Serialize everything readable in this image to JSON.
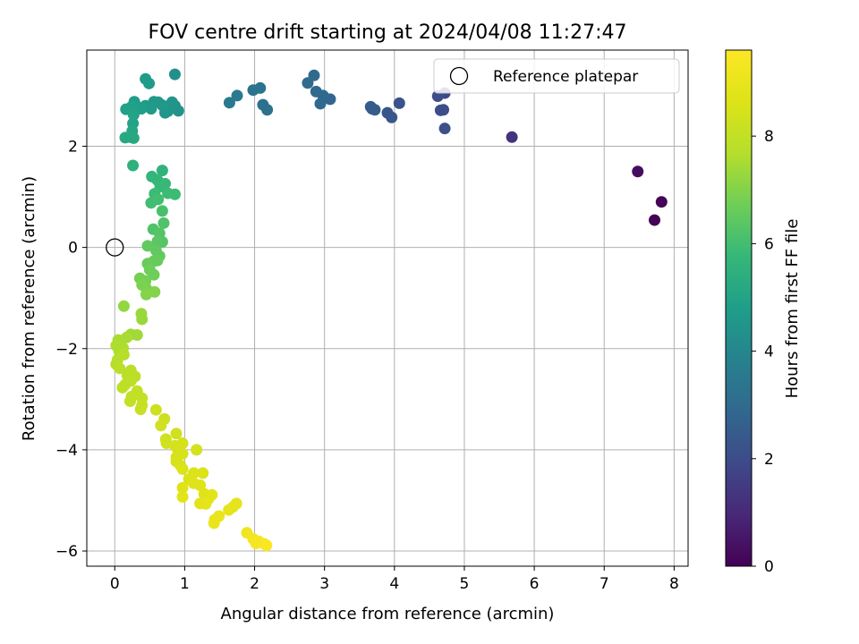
{
  "chart_data": {
    "type": "scatter",
    "title": "FOV centre drift starting at 2024/04/08 11:27:47",
    "xlabel": "Angular distance from reference (arcmin)",
    "ylabel": "Rotation from reference (arcmin)",
    "xlim": [
      -0.4,
      8.2
    ],
    "ylim": [
      -6.3,
      3.9
    ],
    "xticks": [
      0,
      1,
      2,
      3,
      4,
      5,
      6,
      7,
      8
    ],
    "yticks": [
      -6,
      -4,
      -2,
      0,
      2
    ],
    "grid": true,
    "legend": {
      "position": "top-right",
      "entries": [
        "Reference platepar"
      ]
    },
    "reference_point": {
      "x": 0,
      "y": 0
    },
    "colorbar": {
      "label": "Hours from first FF file",
      "colormap": "viridis",
      "range": [
        0,
        9.6
      ],
      "ticks": [
        0,
        2,
        4,
        6,
        8
      ]
    },
    "series": [
      {
        "points": [
          [
            7.48,
            1.5,
            0.3
          ],
          [
            7.82,
            0.9,
            0.1
          ],
          [
            7.72,
            0.54,
            0.05
          ],
          [
            5.68,
            2.18,
            1.3
          ],
          [
            4.72,
            3.05,
            1.9
          ],
          [
            4.62,
            2.99,
            2.0
          ],
          [
            4.7,
            2.72,
            2.0
          ],
          [
            4.66,
            2.71,
            2.0
          ],
          [
            4.72,
            2.35,
            2.1
          ],
          [
            4.07,
            2.85,
            2.2
          ],
          [
            3.9,
            2.66,
            2.3
          ],
          [
            3.96,
            2.57,
            2.3
          ],
          [
            3.66,
            2.78,
            2.5
          ],
          [
            3.68,
            2.74,
            2.5
          ],
          [
            3.72,
            2.72,
            2.5
          ],
          [
            3.08,
            2.93,
            2.8
          ],
          [
            2.98,
            3.0,
            2.9
          ],
          [
            2.88,
            3.08,
            2.9
          ],
          [
            2.94,
            2.84,
            2.9
          ],
          [
            2.85,
            3.4,
            3.0
          ],
          [
            2.76,
            3.25,
            3.0
          ],
          [
            2.18,
            2.72,
            3.2
          ],
          [
            2.12,
            2.82,
            3.2
          ],
          [
            2.08,
            3.15,
            3.3
          ],
          [
            1.98,
            3.11,
            3.3
          ],
          [
            1.75,
            3.0,
            3.5
          ],
          [
            1.64,
            2.86,
            3.5
          ],
          [
            0.86,
            3.42,
            4.3
          ],
          [
            0.91,
            2.7,
            4.4
          ],
          [
            0.86,
            2.8,
            4.4
          ],
          [
            0.82,
            2.87,
            4.5
          ],
          [
            0.76,
            2.69,
            4.5
          ],
          [
            0.72,
            2.66,
            4.5
          ],
          [
            0.68,
            2.81,
            4.6
          ],
          [
            0.62,
            2.87,
            4.6
          ],
          [
            0.56,
            2.88,
            4.6
          ],
          [
            0.52,
            2.74,
            4.7
          ],
          [
            0.44,
            3.33,
            4.7
          ],
          [
            0.49,
            3.24,
            4.7
          ],
          [
            0.44,
            2.8,
            4.7
          ],
          [
            0.38,
            2.74,
            4.8
          ],
          [
            0.3,
            2.81,
            4.8
          ],
          [
            0.28,
            2.88,
            4.8
          ],
          [
            0.24,
            2.78,
            4.9
          ],
          [
            0.16,
            2.73,
            4.9
          ],
          [
            0.27,
            2.62,
            5.0
          ],
          [
            0.26,
            2.45,
            5.0
          ],
          [
            0.25,
            2.3,
            5.1
          ],
          [
            0.22,
            2.18,
            5.1
          ],
          [
            0.15,
            2.17,
            5.2
          ],
          [
            0.27,
            2.16,
            5.2
          ],
          [
            0.26,
            1.62,
            5.5
          ],
          [
            0.68,
            1.52,
            5.6
          ],
          [
            0.53,
            1.4,
            5.7
          ],
          [
            0.61,
            1.33,
            5.7
          ],
          [
            0.72,
            1.26,
            5.8
          ],
          [
            0.65,
            1.2,
            5.8
          ],
          [
            0.86,
            1.05,
            5.9
          ],
          [
            0.76,
            1.07,
            5.9
          ],
          [
            0.57,
            1.06,
            5.9
          ],
          [
            0.62,
            0.95,
            6.0
          ],
          [
            0.52,
            0.88,
            6.0
          ],
          [
            0.68,
            0.72,
            6.1
          ],
          [
            0.7,
            0.48,
            6.2
          ],
          [
            0.55,
            0.36,
            6.2
          ],
          [
            0.64,
            0.28,
            6.3
          ],
          [
            0.68,
            0.11,
            6.3
          ],
          [
            0.61,
            0.12,
            6.4
          ],
          [
            0.47,
            0.03,
            6.5
          ],
          [
            0.59,
            -0.06,
            6.5
          ],
          [
            0.64,
            -0.17,
            6.5
          ],
          [
            0.61,
            -0.26,
            6.6
          ],
          [
            0.56,
            -0.27,
            6.6
          ],
          [
            0.47,
            -0.32,
            6.6
          ],
          [
            0.5,
            -0.44,
            6.7
          ],
          [
            0.56,
            -0.54,
            6.7
          ],
          [
            0.36,
            -0.61,
            6.8
          ],
          [
            0.44,
            -0.66,
            6.8
          ],
          [
            0.39,
            -0.74,
            6.9
          ],
          [
            0.45,
            -0.81,
            6.9
          ],
          [
            0.57,
            -0.88,
            7.0
          ],
          [
            0.45,
            -0.93,
            7.0
          ],
          [
            0.13,
            -1.16,
            7.2
          ],
          [
            0.38,
            -1.31,
            7.3
          ],
          [
            0.39,
            -1.42,
            7.3
          ],
          [
            0.23,
            -1.72,
            7.4
          ],
          [
            0.32,
            -1.73,
            7.4
          ],
          [
            0.17,
            -1.78,
            7.5
          ],
          [
            0.05,
            -1.83,
            7.5
          ],
          [
            0.02,
            -1.94,
            7.6
          ],
          [
            0.12,
            -1.99,
            7.6
          ],
          [
            0.06,
            -2.04,
            7.6
          ],
          [
            0.13,
            -2.12,
            7.7
          ],
          [
            0.04,
            -2.22,
            7.7
          ],
          [
            0.02,
            -2.31,
            7.7
          ],
          [
            0.07,
            -2.39,
            7.8
          ],
          [
            0.23,
            -2.43,
            7.8
          ],
          [
            0.18,
            -2.53,
            7.8
          ],
          [
            0.29,
            -2.55,
            7.8
          ],
          [
            0.23,
            -2.64,
            7.9
          ],
          [
            0.15,
            -2.71,
            7.9
          ],
          [
            0.11,
            -2.77,
            7.9
          ],
          [
            0.32,
            -2.84,
            8.0
          ],
          [
            0.24,
            -2.95,
            8.0
          ],
          [
            0.39,
            -2.98,
            8.0
          ],
          [
            0.22,
            -3.04,
            8.0
          ],
          [
            0.39,
            -3.12,
            8.1
          ],
          [
            0.37,
            -3.2,
            8.1
          ],
          [
            0.59,
            -3.21,
            8.2
          ],
          [
            0.71,
            -3.39,
            8.2
          ],
          [
            0.66,
            -3.52,
            8.3
          ],
          [
            0.88,
            -3.68,
            8.3
          ],
          [
            0.73,
            -3.79,
            8.3
          ],
          [
            0.74,
            -3.87,
            8.3
          ],
          [
            0.97,
            -3.87,
            8.4
          ],
          [
            0.86,
            -3.92,
            8.4
          ],
          [
            0.91,
            -4.02,
            8.4
          ],
          [
            1.17,
            -4.0,
            8.4
          ],
          [
            0.97,
            -4.08,
            8.5
          ],
          [
            0.88,
            -4.15,
            8.5
          ],
          [
            0.88,
            -4.23,
            8.5
          ],
          [
            0.94,
            -4.31,
            8.5
          ],
          [
            0.97,
            -4.38,
            8.6
          ],
          [
            1.13,
            -4.46,
            8.6
          ],
          [
            1.26,
            -4.46,
            8.6
          ],
          [
            1.06,
            -4.58,
            8.6
          ],
          [
            1.13,
            -4.66,
            8.7
          ],
          [
            1.22,
            -4.7,
            8.7
          ],
          [
            0.97,
            -4.75,
            8.7
          ],
          [
            1.28,
            -4.87,
            8.7
          ],
          [
            0.97,
            -4.93,
            8.8
          ],
          [
            1.39,
            -4.89,
            8.8
          ],
          [
            1.34,
            -4.97,
            8.8
          ],
          [
            1.22,
            -5.06,
            8.8
          ],
          [
            1.3,
            -5.07,
            8.9
          ],
          [
            1.74,
            -5.06,
            8.9
          ],
          [
            1.69,
            -5.13,
            8.9
          ],
          [
            1.63,
            -5.19,
            8.9
          ],
          [
            1.49,
            -5.31,
            9.0
          ],
          [
            1.43,
            -5.38,
            9.0
          ],
          [
            1.42,
            -5.45,
            9.0
          ],
          [
            1.89,
            -5.64,
            9.2
          ],
          [
            1.98,
            -5.76,
            9.3
          ],
          [
            2.06,
            -5.81,
            9.4
          ],
          [
            2.02,
            -5.85,
            9.4
          ],
          [
            2.14,
            -5.86,
            9.5
          ],
          [
            2.17,
            -5.89,
            9.5
          ]
        ]
      }
    ]
  }
}
